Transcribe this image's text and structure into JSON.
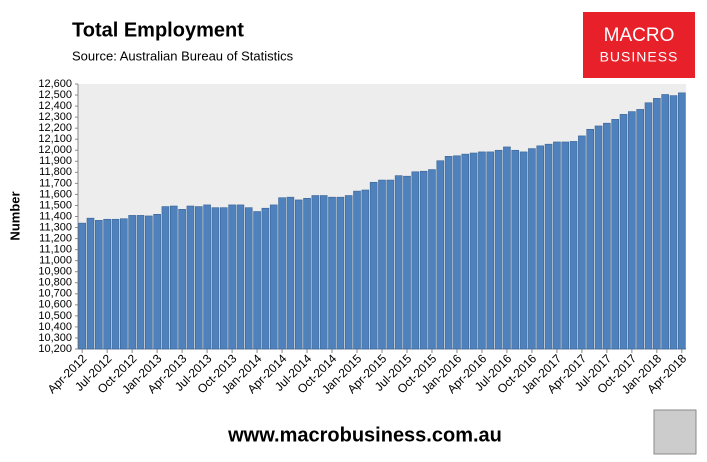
{
  "chart_data": {
    "type": "bar",
    "title": "Total Employment",
    "subtitle": "Source: Australian Bureau of Statistics",
    "y_label": "Number",
    "logo_lines": [
      "MACRO",
      "BUSINESS"
    ],
    "footer": "www.macrobusiness.com.au",
    "color": "#4f81bd",
    "grid": false,
    "categories": [
      "Apr-2012",
      null,
      null,
      "Jul-2012",
      null,
      null,
      "Oct-2012",
      null,
      null,
      "Jan-2013",
      null,
      null,
      "Apr-2013",
      null,
      null,
      "Jul-2013",
      null,
      null,
      "Oct-2013",
      null,
      null,
      "Jan-2014",
      null,
      null,
      "Apr-2014",
      null,
      null,
      "Jul-2014",
      null,
      null,
      "Oct-2014",
      null,
      null,
      "Jan-2015",
      null,
      null,
      "Apr-2015",
      null,
      null,
      "Jul-2015",
      null,
      null,
      "Oct-2015",
      null,
      null,
      "Jan-2016",
      null,
      null,
      "Apr-2016",
      null,
      null,
      "Jul-2016",
      null,
      null,
      "Oct-2016",
      null,
      null,
      "Jan-2017",
      null,
      null,
      "Apr-2017",
      null,
      null,
      "Jul-2017",
      null,
      null,
      "Oct-2017",
      null,
      null,
      "Jan-2018",
      null,
      null,
      "Apr-2018"
    ],
    "values": [
      11340,
      11385,
      11365,
      11375,
      11375,
      11380,
      11410,
      11410,
      11405,
      11420,
      11490,
      11495,
      11465,
      11495,
      11490,
      11505,
      11480,
      11480,
      11505,
      11505,
      11480,
      11445,
      11475,
      11505,
      11570,
      11575,
      11550,
      11565,
      11590,
      11590,
      11575,
      11575,
      11590,
      11630,
      11640,
      11710,
      11730,
      11730,
      11770,
      11765,
      11805,
      11810,
      11825,
      11905,
      11945,
      11950,
      11965,
      11975,
      11985,
      11985,
      12000,
      12030,
      12000,
      11985,
      12015,
      12040,
      12055,
      12075,
      12075,
      12080,
      12130,
      12190,
      12220,
      12245,
      12280,
      12325,
      12350,
      12370,
      12430,
      12470,
      12505,
      12495,
      12520
    ],
    "ylim": [
      10200,
      12600
    ],
    "yticks": [
      {
        "value": 10200,
        "label": "10,200"
      },
      {
        "value": 10300,
        "label": "10,300"
      },
      {
        "value": 10400,
        "label": "10,400"
      },
      {
        "value": 10500,
        "label": "10,500"
      },
      {
        "value": 10600,
        "label": "10,600"
      },
      {
        "value": 10700,
        "label": "10,700"
      },
      {
        "value": 10800,
        "label": "10,800"
      },
      {
        "value": 10900,
        "label": "10,900"
      },
      {
        "value": 11000,
        "label": "11,000"
      },
      {
        "value": 11100,
        "label": "11,100"
      },
      {
        "value": 11200,
        "label": "11,200"
      },
      {
        "value": 11300,
        "label": "11,300"
      },
      {
        "value": 11400,
        "label": "11,400"
      },
      {
        "value": 11500,
        "label": "11,500"
      },
      {
        "value": 11600,
        "label": "11,600"
      },
      {
        "value": 11700,
        "label": "11,700"
      },
      {
        "value": 11800,
        "label": "11,800"
      },
      {
        "value": 11900,
        "label": "11,900"
      },
      {
        "value": 12000,
        "label": "12,000"
      },
      {
        "value": 12100,
        "label": "12,100"
      },
      {
        "value": 12200,
        "label": "12,200"
      },
      {
        "value": 12300,
        "label": "12,300"
      },
      {
        "value": 12400,
        "label": "12,400"
      },
      {
        "value": 12500,
        "label": "12,500"
      },
      {
        "value": 12600,
        "label": "12,600"
      }
    ]
  }
}
